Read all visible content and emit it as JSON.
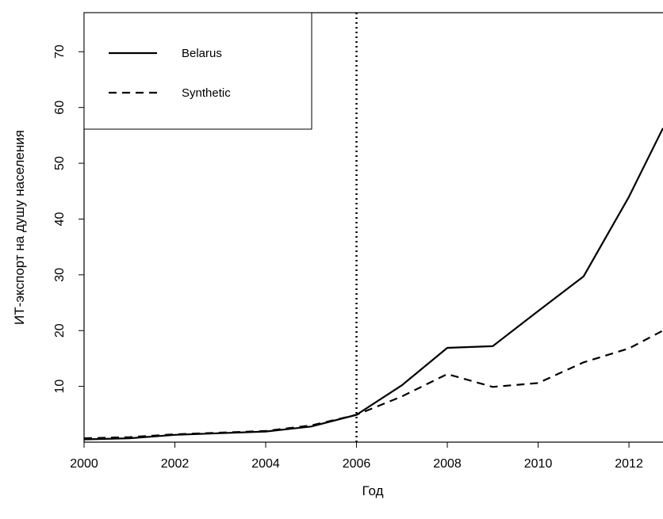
{
  "chart_data": {
    "type": "line",
    "xlabel": "Год",
    "ylabel": "ИТ-экспорт на душу населения",
    "xlim": [
      2000,
      2012.75
    ],
    "ylim": [
      0,
      77
    ],
    "x_ticks": [
      "2000",
      "2002",
      "2004",
      "2006",
      "2008",
      "2010",
      "2012"
    ],
    "y_ticks": [
      "10",
      "20",
      "30",
      "40",
      "50",
      "60",
      "70"
    ],
    "vline": 2006,
    "legend_position": "top-left",
    "grid": false,
    "series": [
      {
        "name": "Belarus",
        "style": "solid",
        "x": [
          2000,
          2001,
          2002,
          2003,
          2004,
          2005,
          2006,
          2007,
          2008,
          2009,
          2010,
          2011,
          2012,
          2012.75
        ],
        "y": [
          0.5,
          0.7,
          1.3,
          1.6,
          1.9,
          2.8,
          4.9,
          10.2,
          16.9,
          17.2,
          23.5,
          29.7,
          44.0,
          56.3
        ]
      },
      {
        "name": "Synthetic",
        "style": "dashed",
        "x": [
          2000,
          2001,
          2002,
          2003,
          2004,
          2005,
          2006,
          2007,
          2008,
          2009,
          2010,
          2011,
          2012,
          2012.75
        ],
        "y": [
          0.7,
          0.9,
          1.4,
          1.7,
          2.0,
          3.0,
          4.9,
          8.2,
          12.2,
          9.9,
          10.6,
          14.3,
          16.8,
          20.0
        ]
      }
    ]
  }
}
